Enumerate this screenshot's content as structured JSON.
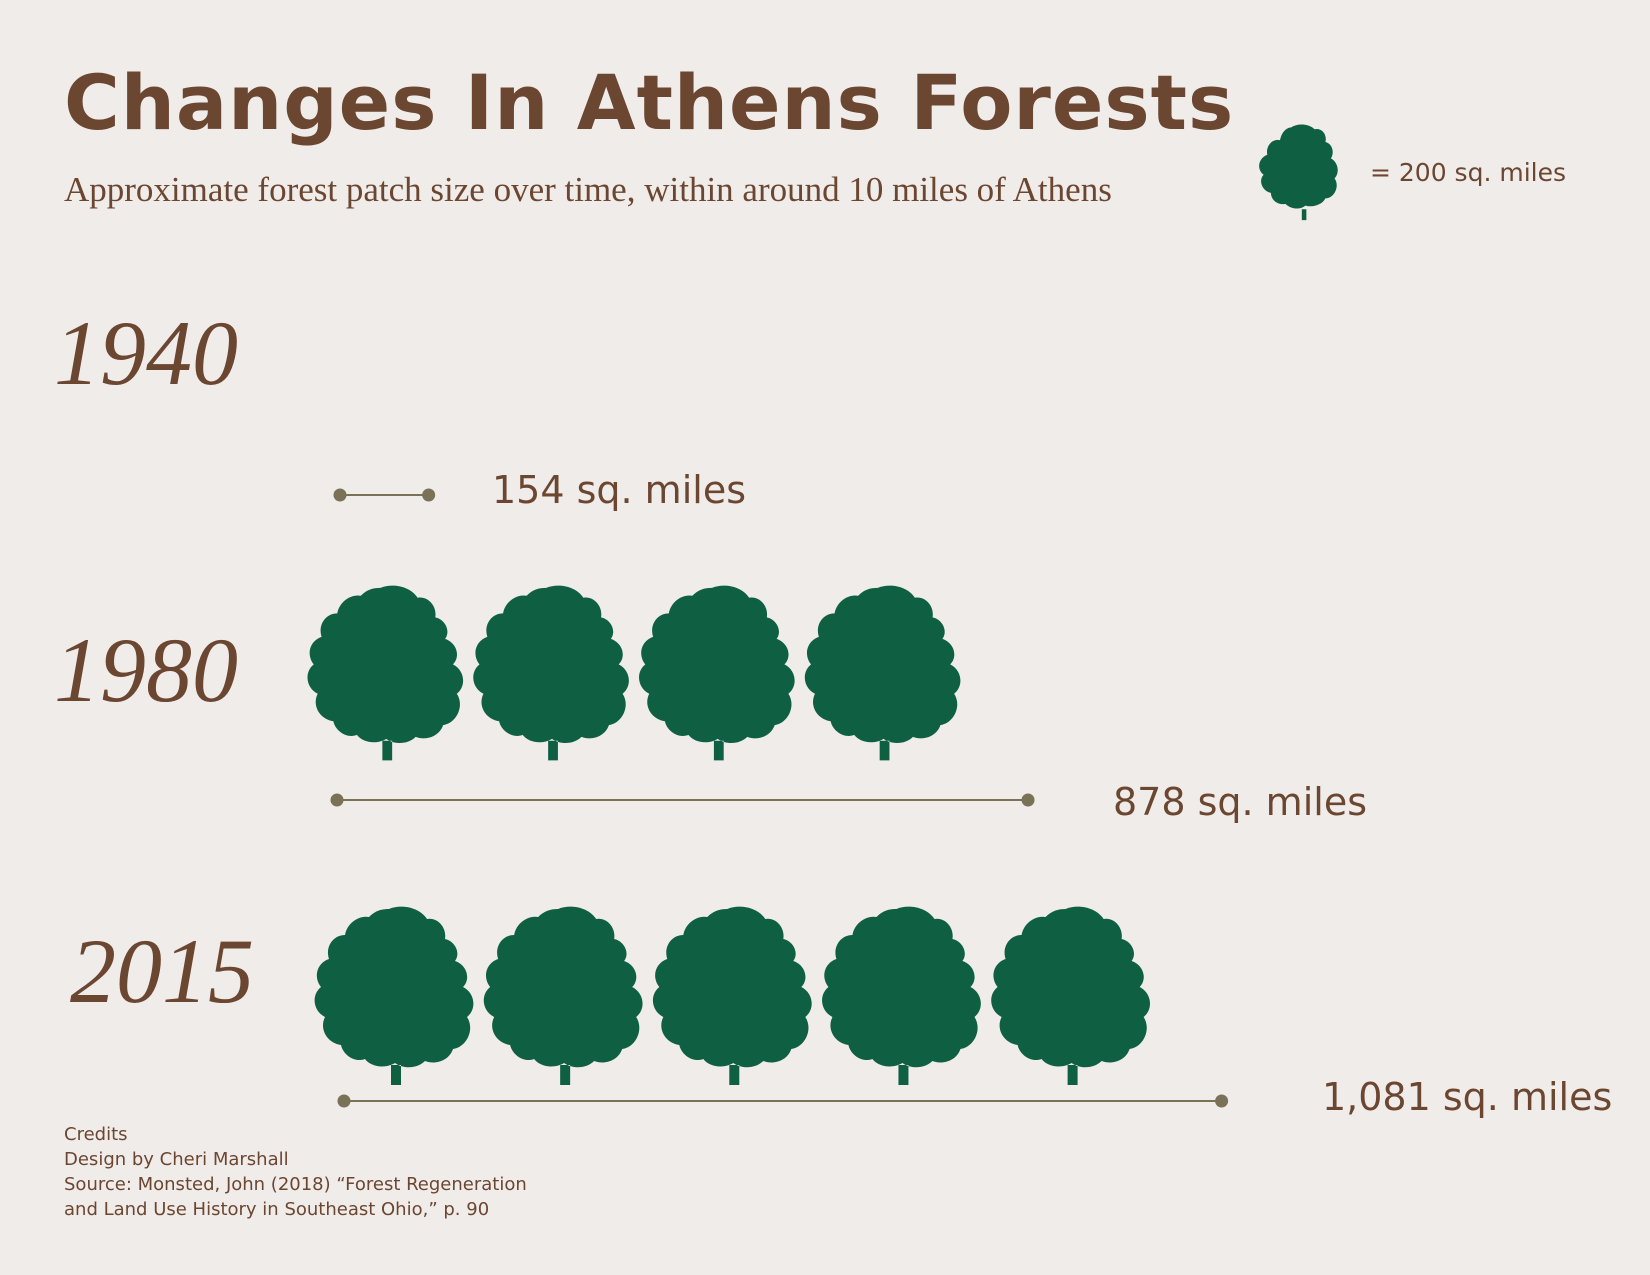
{
  "header": {
    "title": "Changes In Athens Forests",
    "subtitle": "Approximate forest patch size over time, within around 10 miles of Athens"
  },
  "legend": {
    "icon": "tree-icon",
    "label": "= 200 sq. miles",
    "unit_value": 200
  },
  "chart_data": {
    "type": "bar",
    "encoding": "pictogram",
    "unit_per_icon": 200,
    "categories": [
      "1940",
      "1980",
      "2015"
    ],
    "values": [
      154,
      878,
      1081
    ],
    "value_labels": [
      "154 sq. miles",
      "878 sq. miles",
      "1,081 sq. miles"
    ],
    "title": "Changes In Athens Forests",
    "subtitle": "Approximate forest patch size over time, within around 10 miles of Athens"
  },
  "credits": {
    "heading": "Credits",
    "lines": [
      "Design by Cheri Marshall",
      "Source: Monsted, John (2018) “Forest Regeneration",
      "and Land Use History in Southeast Ohio,” p. 90"
    ]
  },
  "colors": {
    "background": "#f0ecea",
    "tree": "#0f6043",
    "text": "#6b4630",
    "line": "#7a7256"
  }
}
